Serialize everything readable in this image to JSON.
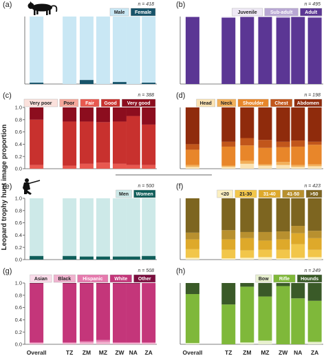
{
  "y_axis_label": "Leopard trophy hunt image proportion",
  "x_categories": [
    "Overall",
    "TZ",
    "ZM",
    "MZ",
    "ZW",
    "NA",
    "ZA"
  ],
  "chart_data": [
    {
      "type": "bar",
      "stacked": true,
      "panel": "(a)",
      "n_label": "n = 418",
      "categories": [
        "Overall",
        "TZ",
        "ZM",
        "MZ",
        "ZW",
        "NA",
        "ZA"
      ],
      "ylim": [
        0,
        1
      ],
      "yticks": [],
      "series": [
        {
          "name": "Female",
          "color": "#17546a",
          "values": [
            0.02,
            0.0,
            0.06,
            0.0,
            0.03,
            0.0,
            0.02
          ]
        },
        {
          "name": "Male",
          "color": "#c9e7f4",
          "values": [
            0.98,
            1.0,
            0.94,
            1.0,
            0.97,
            1.0,
            0.98
          ]
        }
      ],
      "legend": [
        {
          "name": "Male",
          "color": "#c9e7f4",
          "text_color": "#222222"
        },
        {
          "name": "Female",
          "color": "#17546a",
          "text_color": "#ffffff"
        }
      ]
    },
    {
      "type": "bar",
      "stacked": true,
      "panel": "(b)",
      "n_label": "n = 495",
      "categories": [
        "Overall",
        "TZ",
        "ZM",
        "MZ",
        "ZW",
        "NA",
        "ZA"
      ],
      "ylim": [
        0,
        1
      ],
      "yticks": [],
      "series": [
        {
          "name": "Adult",
          "color": "#5b3694",
          "values": [
            0.99,
            0.98,
            0.99,
            0.99,
            0.98,
            0.99,
            0.98
          ]
        },
        {
          "name": "Sub-adult",
          "color": "#b9a8d4",
          "values": [
            0.01,
            0.01,
            0.01,
            0.01,
            0.02,
            0.01,
            0.02
          ]
        },
        {
          "name": "Juvenile",
          "color": "#eee8f5",
          "values": [
            0.0,
            0.01,
            0.0,
            0.0,
            0.0,
            0.0,
            0.0
          ]
        }
      ],
      "legend": [
        {
          "name": "Juvenile",
          "color": "#eee8f5",
          "text_color": "#222222"
        },
        {
          "name": "Sub-adult",
          "color": "#b9a8d4",
          "text_color": "#ffffff"
        },
        {
          "name": "Adult",
          "color": "#5b3694",
          "text_color": "#ffffff"
        }
      ]
    },
    {
      "type": "bar",
      "stacked": true,
      "panel": "(c)",
      "n_label": "n = 388",
      "categories": [
        "Overall",
        "TZ",
        "ZM",
        "MZ",
        "ZW",
        "NA",
        "ZA"
      ],
      "ylim": [
        0,
        1
      ],
      "yticks": [
        "0.0",
        "0.2",
        "0.4",
        "0.6",
        "0.8",
        "1.0"
      ],
      "series": [
        {
          "name": "Very poor",
          "color": "#fbe1dc",
          "values": [
            0.0,
            0.0,
            0.0,
            0.0,
            0.0,
            0.0,
            0.0
          ]
        },
        {
          "name": "Poor",
          "color": "#f5a79a",
          "values": [
            0.0,
            0.0,
            0.0,
            0.0,
            0.0,
            0.0,
            0.0
          ]
        },
        {
          "name": "Fair",
          "color": "#e8584f",
          "values": [
            0.06,
            0.05,
            0.08,
            0.1,
            0.08,
            0.06,
            0.06
          ]
        },
        {
          "name": "Good",
          "color": "#c8312e",
          "values": [
            0.74,
            0.72,
            0.69,
            0.66,
            0.69,
            0.8,
            0.66
          ]
        },
        {
          "name": "Very good",
          "color": "#8c0d1e",
          "values": [
            0.2,
            0.23,
            0.23,
            0.24,
            0.23,
            0.14,
            0.28
          ]
        }
      ],
      "legend": [
        {
          "name": "Very poor",
          "color": "#fbe1dc",
          "text_color": "#222222"
        },
        {
          "name": "Poor",
          "color": "#f5a79a",
          "text_color": "#222222"
        },
        {
          "name": "Fair",
          "color": "#e8584f",
          "text_color": "#ffffff"
        },
        {
          "name": "Good",
          "color": "#c8312e",
          "text_color": "#ffffff"
        },
        {
          "name": "Very good",
          "color": "#8c0d1e",
          "text_color": "#ffffff"
        }
      ]
    },
    {
      "type": "bar",
      "stacked": true,
      "panel": "(d)",
      "n_label": "n = 198",
      "categories": [
        "Overall",
        "TZ",
        "ZM",
        "MZ",
        "ZW",
        "NA",
        "ZA"
      ],
      "ylim": [
        0,
        1
      ],
      "yticks": [],
      "series": [
        {
          "name": "Head",
          "color": "#fbe3b3",
          "values": [
            0.03,
            0.03,
            0.08,
            0.05,
            0.06,
            0.03,
            0.04
          ]
        },
        {
          "name": "Neck",
          "color": "#f2b05a",
          "values": [
            0.03,
            0.02,
            0.05,
            0.02,
            0.05,
            0.03,
            0.03
          ]
        },
        {
          "name": "Shoulder",
          "color": "#e8862a",
          "values": [
            0.25,
            0.31,
            0.25,
            0.27,
            0.24,
            0.3,
            0.32
          ]
        },
        {
          "name": "Chest",
          "color": "#c1561b",
          "values": [
            0.09,
            0.08,
            0.12,
            0.13,
            0.09,
            0.1,
            0.05
          ]
        },
        {
          "name": "Abdomen",
          "color": "#8f2b0c",
          "values": [
            0.6,
            0.56,
            0.5,
            0.53,
            0.56,
            0.54,
            0.56
          ]
        }
      ],
      "legend": [
        {
          "name": "Head",
          "color": "#fbe3b3",
          "text_color": "#222222"
        },
        {
          "name": "Neck",
          "color": "#f2b05a",
          "text_color": "#222222"
        },
        {
          "name": "Shoulder",
          "color": "#e8862a",
          "text_color": "#ffffff"
        },
        {
          "name": "Chest",
          "color": "#c1561b",
          "text_color": "#ffffff"
        },
        {
          "name": "Abdomen",
          "color": "#8f2b0c",
          "text_color": "#ffffff"
        }
      ]
    },
    {
      "type": "bar",
      "stacked": true,
      "panel": "(e)",
      "n_label": "n = 500",
      "categories": [
        "Overall",
        "TZ",
        "ZM",
        "MZ",
        "ZW",
        "NA",
        "ZA"
      ],
      "ylim": [
        0,
        1
      ],
      "yticks": [
        "0.0",
        "0.2",
        "0.4",
        "0.6",
        "0.8",
        "1.0"
      ],
      "series": [
        {
          "name": "Women",
          "color": "#0f5e5a",
          "values": [
            0.06,
            0.06,
            0.05,
            0.05,
            0.05,
            0.05,
            0.06
          ]
        },
        {
          "name": "Men",
          "color": "#cde9e8",
          "values": [
            0.94,
            0.94,
            0.95,
            0.95,
            0.95,
            0.95,
            0.94
          ]
        }
      ],
      "legend": [
        {
          "name": "Men",
          "color": "#cde9e8",
          "text_color": "#222222"
        },
        {
          "name": "Women",
          "color": "#0f5e5a",
          "text_color": "#ffffff"
        }
      ]
    },
    {
      "type": "bar",
      "stacked": true,
      "panel": "(f)",
      "n_label": "n = 423",
      "categories": [
        "Overall",
        "TZ",
        "ZM",
        "MZ",
        "ZW",
        "NA",
        "ZA"
      ],
      "ylim": [
        0,
        1
      ],
      "yticks": [],
      "series": [
        {
          "name": "<20",
          "color": "#fbefc0",
          "values": [
            0.03,
            0.02,
            0.03,
            0.04,
            0.02,
            0.03,
            0.04
          ]
        },
        {
          "name": "21-30",
          "color": "#f2c64a",
          "values": [
            0.14,
            0.14,
            0.12,
            0.12,
            0.14,
            0.22,
            0.12
          ]
        },
        {
          "name": "31-40",
          "color": "#dea92a",
          "values": [
            0.16,
            0.17,
            0.2,
            0.15,
            0.17,
            0.18,
            0.19
          ]
        },
        {
          "name": "41-50",
          "color": "#b8902f",
          "values": [
            0.11,
            0.15,
            0.1,
            0.14,
            0.13,
            0.12,
            0.12
          ]
        },
        {
          "name": ">50",
          "color": "#7d6520",
          "values": [
            0.56,
            0.52,
            0.55,
            0.55,
            0.54,
            0.45,
            0.53
          ]
        }
      ],
      "legend": [
        {
          "name": "<20",
          "color": "#fbefc0",
          "text_color": "#222222"
        },
        {
          "name": "21-30",
          "color": "#f2c64a",
          "text_color": "#222222"
        },
        {
          "name": "31-40",
          "color": "#dea92a",
          "text_color": "#ffffff"
        },
        {
          "name": "41-50",
          "color": "#b8902f",
          "text_color": "#ffffff"
        },
        {
          "name": ">50",
          "color": "#7d6520",
          "text_color": "#ffffff"
        }
      ]
    },
    {
      "type": "bar",
      "stacked": true,
      "panel": "(g)",
      "n_label": "n = 508",
      "categories": [
        "Overall",
        "TZ",
        "ZM",
        "MZ",
        "ZW",
        "NA",
        "ZA"
      ],
      "ylim": [
        0,
        1
      ],
      "yticks": [
        "0.0",
        "0.2",
        "0.4",
        "0.6",
        "0.8",
        "1.0"
      ],
      "series": [
        {
          "name": "Asian",
          "color": "#f9dbe9",
          "values": [
            0.0,
            0.0,
            0.0,
            0.0,
            0.0,
            0.0,
            0.0
          ]
        },
        {
          "name": "Black",
          "color": "#f0b3cf",
          "values": [
            0.02,
            0.02,
            0.03,
            0.04,
            0.02,
            0.02,
            0.02
          ]
        },
        {
          "name": "Hispanic",
          "color": "#e67aae",
          "values": [
            0.01,
            0.01,
            0.02,
            0.03,
            0.01,
            0.01,
            0.01
          ]
        },
        {
          "name": "White",
          "color": "#c4367a",
          "values": [
            0.96,
            0.96,
            0.94,
            0.92,
            0.96,
            0.96,
            0.97
          ]
        },
        {
          "name": "Other",
          "color": "#7a0e3e",
          "values": [
            0.01,
            0.01,
            0.01,
            0.01,
            0.01,
            0.01,
            0.0
          ]
        }
      ],
      "legend": [
        {
          "name": "Asian",
          "color": "#f9dbe9",
          "text_color": "#222222"
        },
        {
          "name": "Black",
          "color": "#f0b3cf",
          "text_color": "#222222"
        },
        {
          "name": "Hispanic",
          "color": "#e67aae",
          "text_color": "#ffffff"
        },
        {
          "name": "White",
          "color": "#c4367a",
          "text_color": "#ffffff"
        },
        {
          "name": "Other",
          "color": "#7a0e3e",
          "text_color": "#ffffff"
        }
      ]
    },
    {
      "type": "bar",
      "stacked": true,
      "panel": "(h)",
      "n_label": "n = 249",
      "categories": [
        "Overall",
        "TZ",
        "ZM",
        "MZ",
        "ZW",
        "NA",
        "ZA"
      ],
      "ylim": [
        0,
        1
      ],
      "yticks": [],
      "series": [
        {
          "name": "Bow",
          "color": "#e8f0d0",
          "values": [
            0.02,
            0.0,
            0.03,
            0.06,
            0.0,
            0.0,
            0.04
          ]
        },
        {
          "name": "Rifle",
          "color": "#7fb83a",
          "values": [
            0.8,
            0.65,
            0.91,
            0.72,
            0.95,
            0.75,
            0.67
          ]
        },
        {
          "name": "Hounds",
          "color": "#3a5a28",
          "values": [
            0.18,
            0.35,
            0.06,
            0.22,
            0.05,
            0.25,
            0.29
          ]
        }
      ],
      "legend": [
        {
          "name": "Bow",
          "color": "#e8f0d0",
          "text_color": "#222222"
        },
        {
          "name": "Rifle",
          "color": "#7fb83a",
          "text_color": "#ffffff"
        },
        {
          "name": "Hounds",
          "color": "#3a5a28",
          "text_color": "#ffffff"
        }
      ]
    }
  ]
}
